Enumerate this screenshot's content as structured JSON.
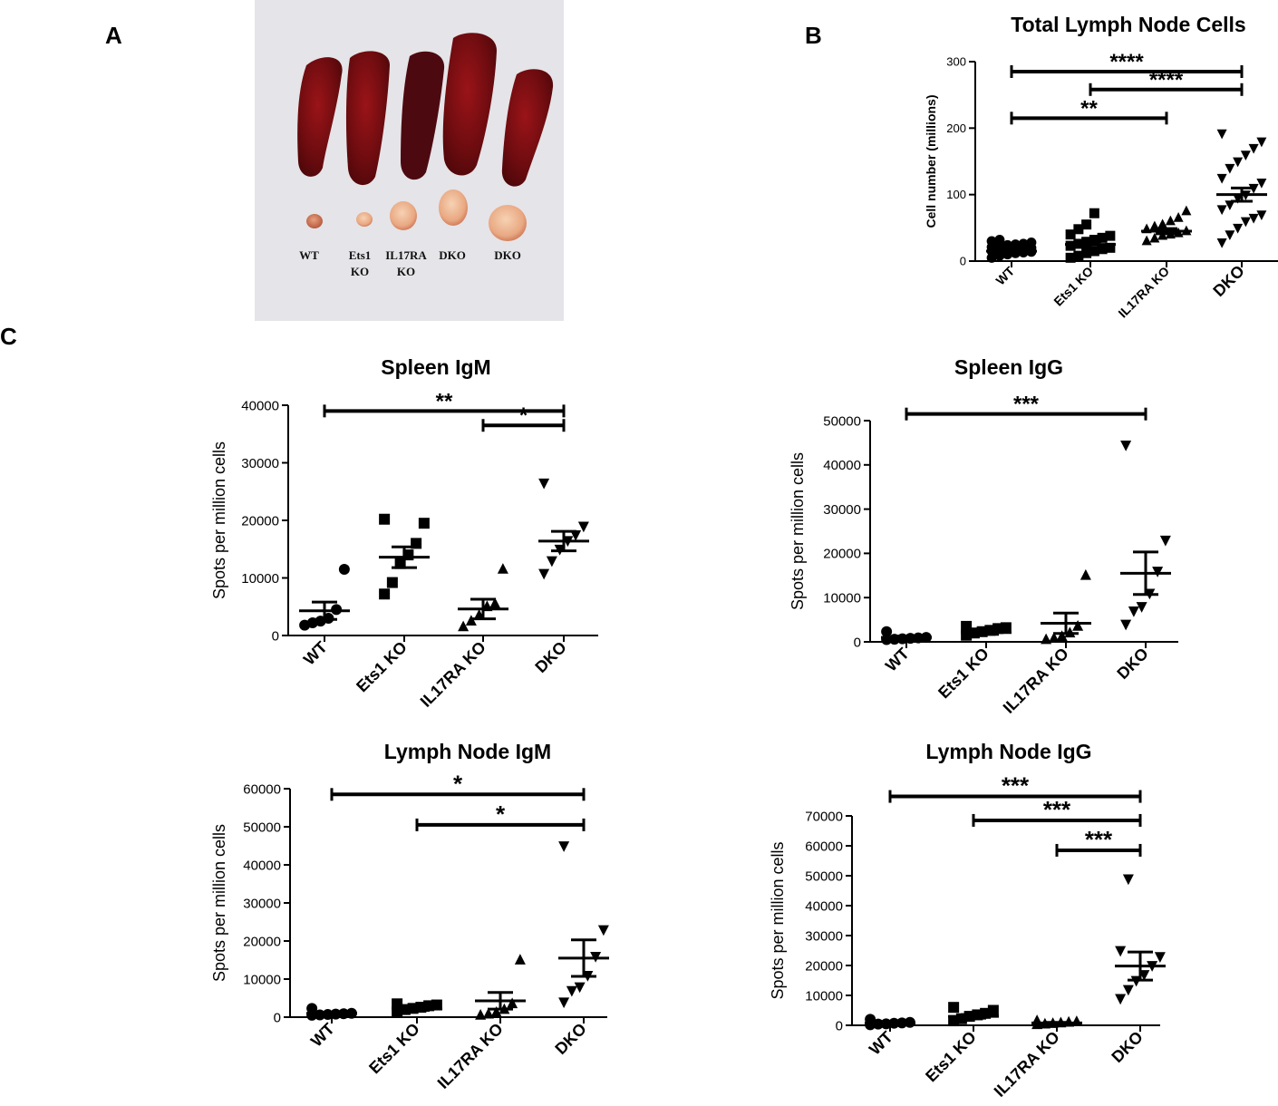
{
  "panels": {
    "a": "A",
    "b": "B",
    "c": "C"
  },
  "photo": {
    "labels": [
      {
        "lines": [
          "WT"
        ]
      },
      {
        "lines": [
          "Ets1",
          "KO"
        ]
      },
      {
        "lines": [
          "IL17RA",
          "KO"
        ]
      },
      {
        "lines": [
          "DKO"
        ]
      },
      {
        "lines": [
          "DKO"
        ]
      }
    ]
  },
  "chart_data": [
    {
      "id": "total_ln",
      "type": "scatter",
      "title": "Total Lymph Node Cells",
      "ylabel": "Cell number (millions)",
      "categories": [
        "WT",
        "Ets1 KO",
        "IL17RA KO",
        "DKO"
      ],
      "ylim": [
        0,
        300
      ],
      "yticks": [
        0,
        100,
        200,
        300
      ],
      "markers": [
        "circle",
        "square",
        "triangle-up",
        "triangle-down"
      ],
      "points": [
        [
          5,
          8,
          10,
          12,
          13,
          14,
          15,
          16,
          17,
          18,
          19,
          20,
          21,
          22,
          24,
          25,
          26,
          28,
          30,
          32
        ],
        [
          5,
          8,
          12,
          15,
          18,
          20,
          23,
          26,
          29,
          32,
          35,
          38,
          40,
          48,
          55,
          72
        ],
        [
          30,
          34,
          38,
          40,
          42,
          45,
          48,
          52,
          55,
          60,
          65,
          75
        ],
        [
          28,
          40,
          50,
          60,
          65,
          70,
          78,
          85,
          95,
          100,
          110,
          118,
          125,
          140,
          150,
          160,
          170,
          180,
          192
        ]
      ],
      "means": [
        15,
        25,
        45,
        100
      ],
      "sems": [
        2,
        4,
        4,
        10
      ],
      "significance": [
        {
          "from": 0,
          "to": 3,
          "y": 285,
          "label": "****"
        },
        {
          "from": 1,
          "to": 3,
          "y": 258,
          "label": "****"
        },
        {
          "from": 0,
          "to": 2,
          "y": 215,
          "label": "**"
        }
      ]
    },
    {
      "id": "spleen_igm",
      "type": "scatter",
      "title": "Spleen IgM",
      "ylabel": "Spots per million cells",
      "categories": [
        "WT",
        "Ets1 KO",
        "IL17RA KO",
        "DKO"
      ],
      "ylim": [
        0,
        40000
      ],
      "yticks": [
        0,
        10000,
        20000,
        30000,
        40000
      ],
      "markers": [
        "circle",
        "square",
        "triangle-up",
        "triangle-down"
      ],
      "points": [
        [
          1800,
          2200,
          2500,
          3000,
          4500,
          11500
        ],
        [
          7200,
          9200,
          12500,
          14000,
          16000,
          19500,
          20200
        ],
        [
          1500,
          2500,
          3500,
          5000,
          5500,
          11500
        ],
        [
          10800,
          13000,
          15000,
          16500,
          17500,
          19000,
          26500
        ]
      ],
      "means": [
        4300,
        13600,
        4600,
        16400
      ],
      "sems": [
        1500,
        1800,
        1700,
        1700
      ],
      "significance": [
        {
          "from": 0,
          "to": 3,
          "y": 39000,
          "label": "**"
        },
        {
          "from": 2,
          "to": 3,
          "y": 36500,
          "label": "*"
        }
      ]
    },
    {
      "id": "spleen_igg",
      "type": "scatter",
      "title": "Spleen IgG",
      "ylabel": "Spots per million cells",
      "categories": [
        "WT",
        "Ets1 KO",
        "IL17RA KO",
        "DKO"
      ],
      "ylim": [
        0,
        50000
      ],
      "yticks": [
        0,
        10000,
        20000,
        30000,
        40000,
        50000
      ],
      "markers": [
        "circle",
        "square",
        "triangle-up",
        "triangle-down"
      ],
      "points": [
        [
          500,
          600,
          700,
          800,
          900,
          1000,
          2300
        ],
        [
          1500,
          2000,
          2300,
          2600,
          3000,
          3200,
          3500
        ],
        [
          500,
          800,
          1200,
          2000,
          3500,
          15000
        ],
        [
          4000,
          7000,
          8000,
          11000,
          16000,
          23000,
          44500
        ]
      ],
      "means": [
        1000,
        2100,
        4200,
        15500
      ],
      "sems": [
        300,
        400,
        2300,
        4800
      ],
      "significance": [
        {
          "from": 0,
          "to": 3,
          "y": 51500,
          "label": "***"
        }
      ]
    },
    {
      "id": "ln_igm",
      "type": "scatter",
      "title": "Lymph Node IgM",
      "ylabel": "Spots per million cells",
      "categories": [
        "WT",
        "Ets1 KO",
        "IL17RA KO",
        "DKO"
      ],
      "ylim": [
        0,
        60000
      ],
      "yticks": [
        0,
        10000,
        20000,
        30000,
        40000,
        50000,
        60000
      ],
      "markers": [
        "circle",
        "square",
        "triangle-up",
        "triangle-down"
      ],
      "points": [
        [
          500,
          600,
          700,
          800,
          900,
          1000,
          2300
        ],
        [
          1500,
          2000,
          2300,
          2600,
          3000,
          3200,
          3500
        ],
        [
          500,
          800,
          1200,
          2000,
          3500,
          15000
        ],
        [
          4000,
          7000,
          8000,
          11000,
          16000,
          23000,
          45000
        ]
      ],
      "means": [
        1000,
        2200,
        4300,
        15500
      ],
      "sems": [
        300,
        400,
        2200,
        4800
      ],
      "significance": [
        {
          "from": 0,
          "to": 3,
          "y": 58500,
          "label": "*"
        },
        {
          "from": 1,
          "to": 3,
          "y": 50500,
          "label": "*"
        }
      ]
    },
    {
      "id": "ln_igg",
      "type": "scatter",
      "title": "Lymph Node IgG",
      "ylabel": "Spots per million cells",
      "categories": [
        "WT",
        "Ets1 KO",
        "IL17RA KO",
        "DKO"
      ],
      "ylim": [
        0,
        70000
      ],
      "yticks": [
        0,
        10000,
        20000,
        30000,
        40000,
        50000,
        60000,
        70000
      ],
      "markers": [
        "circle",
        "square",
        "triangle-up",
        "triangle-down"
      ],
      "points": [
        [
          200,
          400,
          500,
          700,
          800,
          1000,
          2000
        ],
        [
          1500,
          2200,
          3000,
          3500,
          4000,
          5000,
          6000
        ],
        [
          200,
          400,
          600,
          800,
          1000,
          1200,
          1500
        ],
        [
          9000,
          12000,
          15000,
          17000,
          20000,
          23000,
          25000,
          49000
        ]
      ],
      "means": [
        800,
        3000,
        800,
        19800
      ],
      "sems": [
        300,
        600,
        200,
        4700
      ],
      "significance": [
        {
          "from": 0,
          "to": 3,
          "y": 76500,
          "label": "***"
        },
        {
          "from": 1,
          "to": 3,
          "y": 68500,
          "label": "***"
        },
        {
          "from": 2,
          "to": 3,
          "y": 58500,
          "label": "***"
        }
      ]
    }
  ]
}
